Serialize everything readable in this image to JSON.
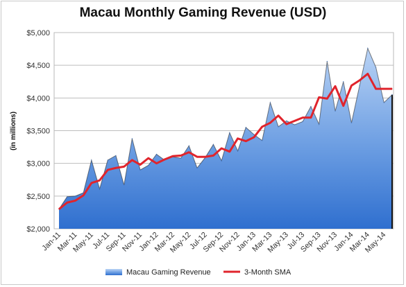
{
  "chart_data": {
    "type": "area",
    "title": "Macau Monthly Gaming Revenue (USD)",
    "ylabel": "(in millions)",
    "ylim": [
      2000,
      5000
    ],
    "yticks": [
      "$2,000",
      "$2,500",
      "$3,000",
      "$3,500",
      "$4,000",
      "$4,500",
      "$5,000"
    ],
    "grid": true,
    "legend_position": "bottom",
    "x_tick_labels": [
      "Jan-11",
      "Mar-11",
      "May-11",
      "Jul-11",
      "Sep-11",
      "Nov-11",
      "Jan-12",
      "Mar-12",
      "May-12",
      "Jul-12",
      "Sep-12",
      "Nov-12",
      "Jan-13",
      "Mar-13",
      "May-13",
      "Jul-13",
      "Sep-13",
      "Nov-13",
      "Jan-14",
      "Mar-14",
      "May-14"
    ],
    "x": [
      "Jan-11",
      "Feb-11",
      "Mar-11",
      "Apr-11",
      "May-11",
      "Jun-11",
      "Jul-11",
      "Aug-11",
      "Sep-11",
      "Oct-11",
      "Nov-11",
      "Dec-11",
      "Jan-12",
      "Feb-12",
      "Mar-12",
      "Apr-12",
      "May-12",
      "Jun-12",
      "Jul-12",
      "Aug-12",
      "Sep-12",
      "Oct-12",
      "Nov-12",
      "Dec-12",
      "Jan-13",
      "Feb-13",
      "Mar-13",
      "Apr-13",
      "May-13",
      "Jun-13",
      "Jul-13",
      "Aug-13",
      "Sep-13",
      "Oct-13",
      "Nov-13",
      "Dec-13",
      "Jan-14",
      "Feb-14",
      "Mar-14",
      "Apr-14",
      "May-14",
      "Jun-14"
    ],
    "series": [
      {
        "name": "Macau Gaming Revenue",
        "kind": "area",
        "color": "#5b8fd9",
        "values": [
          2300,
          2490,
          2500,
          2550,
          3050,
          2610,
          3050,
          3120,
          2670,
          3380,
          2900,
          2970,
          3140,
          3050,
          3100,
          3080,
          3270,
          2930,
          3090,
          3290,
          3040,
          3470,
          3190,
          3550,
          3440,
          3350,
          3930,
          3560,
          3650,
          3590,
          3640,
          3870,
          3600,
          4560,
          3800,
          4250,
          3620,
          4190,
          4760,
          4470,
          3930,
          4050
        ]
      },
      {
        "name": "3-Month SMA",
        "kind": "line",
        "color": "#e0242c",
        "values": [
          2300,
          2400,
          2430,
          2510,
          2700,
          2740,
          2900,
          2930,
          2950,
          3050,
          2980,
          3080,
          3000,
          3060,
          3110,
          3120,
          3170,
          3100,
          3100,
          3120,
          3230,
          3180,
          3380,
          3340,
          3400,
          3560,
          3620,
          3730,
          3600,
          3650,
          3700,
          3700,
          4010,
          3990,
          4180,
          3880,
          4190,
          4270,
          4370,
          4140,
          4140,
          4140
        ]
      }
    ]
  }
}
